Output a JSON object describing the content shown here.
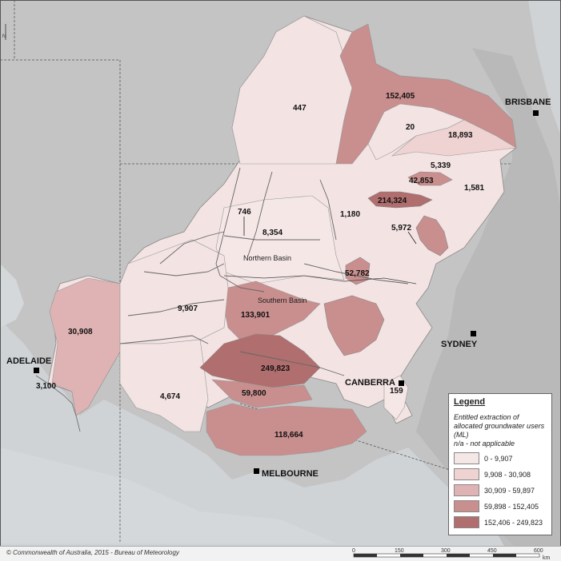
{
  "map_labels": {
    "values": {
      "v447": "447",
      "v152405": "152,405",
      "v20": "20",
      "v18893": "18,893",
      "v5339": "5,339",
      "v42853": "42,853",
      "v1581": "1,581",
      "v214324": "214,324",
      "v1180": "1,180",
      "v5972": "5,972",
      "v746": "746",
      "v8354": "8,354",
      "v52782": "52,782",
      "v9907": "9,907",
      "v133901": "133,901",
      "v30908": "30,908",
      "v249823": "249,823",
      "v3100": "3,100",
      "v59800": "59,800",
      "v4674": "4,674",
      "v118664": "118,664",
      "v159": "159"
    },
    "basins": {
      "northern": "Northern Basin",
      "southern": "Southern Basin"
    },
    "cities": {
      "brisbane": "BRISBANE",
      "sydney": "SYDNEY",
      "canberra": "CANBERRA",
      "adelaide": "ADELAIDE",
      "melbourne": "MELBOURNE"
    }
  },
  "legend": {
    "title": "Legend",
    "description": "Entitled extraction of allocated groundwater users (ML)",
    "note": "n/a - not applicable",
    "classes": [
      {
        "label": "0 - 9,907",
        "color": "#f6e7e7"
      },
      {
        "label": "9,908 - 30,908",
        "color": "#efd2d2"
      },
      {
        "label": "30,909 - 59,897",
        "color": "#dfb3b3"
      },
      {
        "label": "59,898 - 152,405",
        "color": "#c98e8e"
      },
      {
        "label": "152,406 - 249,823",
        "color": "#b06e6e"
      }
    ]
  },
  "footer": {
    "copyright": "© Commonwealth of Australia, 2015 - Bureau of Meteorology"
  },
  "scale_bar": {
    "ticks": [
      "0",
      "150",
      "300",
      "450",
      "600"
    ],
    "unit": "km"
  },
  "north_arrow": "N"
}
